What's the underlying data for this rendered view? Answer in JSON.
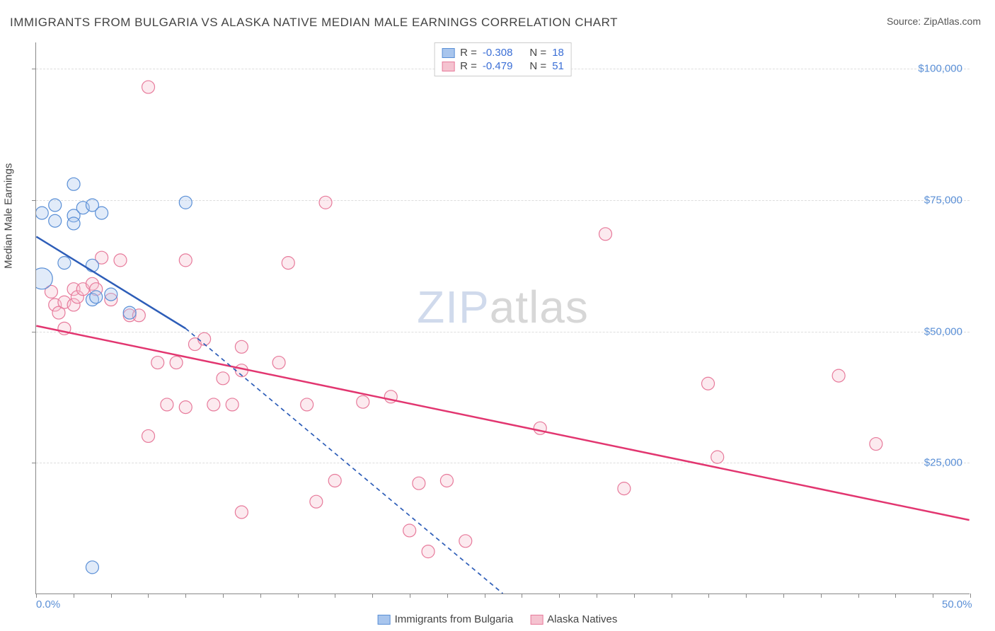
{
  "title": "IMMIGRANTS FROM BULGARIA VS ALASKA NATIVE MEDIAN MALE EARNINGS CORRELATION CHART",
  "source_label": "Source: ZipAtlas.com",
  "y_axis_label": "Median Male Earnings",
  "watermark_a": "ZIP",
  "watermark_b": "atlas",
  "chart": {
    "type": "scatter",
    "background_color": "#ffffff",
    "grid_color": "#dddddd",
    "axis_color": "#888888",
    "tick_label_color": "#5a8fd6",
    "axis_label_color": "#444444",
    "title_fontsize": 17,
    "label_fontsize": 15,
    "xlim": [
      0,
      50
    ],
    "ylim": [
      0,
      105000
    ],
    "x_ticks": [
      0,
      2,
      4,
      6,
      8,
      10,
      12,
      14,
      16,
      18,
      20,
      22,
      24,
      26,
      28,
      30,
      32,
      34,
      36,
      38,
      40,
      42,
      44,
      46,
      48,
      50
    ],
    "x_tick_labels": {
      "0": "0.0%",
      "50": "50.0%"
    },
    "y_gridlines": [
      25000,
      50000,
      75000,
      100000
    ],
    "y_tick_labels": {
      "25000": "$25,000",
      "50000": "$50,000",
      "75000": "$75,000",
      "100000": "$100,000"
    },
    "marker_radius": 9,
    "marker_radius_large": 15,
    "marker_opacity": 0.35,
    "marker_stroke_width": 1.2,
    "trend_line_width": 2.5,
    "trend_dash": "6,5"
  },
  "series": {
    "blue": {
      "label": "Immigrants from Bulgaria",
      "fill": "#a8c5ed",
      "stroke": "#5a8fd6",
      "line_color": "#2d5db8",
      "R": "-0.308",
      "N": "18",
      "points": [
        {
          "x": 0.3,
          "y": 72500
        },
        {
          "x": 0.3,
          "y": 60000,
          "large": true
        },
        {
          "x": 1.0,
          "y": 74000
        },
        {
          "x": 1.0,
          "y": 71000
        },
        {
          "x": 1.5,
          "y": 63000
        },
        {
          "x": 2.0,
          "y": 72000
        },
        {
          "x": 2.0,
          "y": 78000
        },
        {
          "x": 2.0,
          "y": 70500
        },
        {
          "x": 2.5,
          "y": 73500
        },
        {
          "x": 3.0,
          "y": 74000
        },
        {
          "x": 3.0,
          "y": 62500
        },
        {
          "x": 3.0,
          "y": 56000
        },
        {
          "x": 3.2,
          "y": 56500
        },
        {
          "x": 3.5,
          "y": 72500
        },
        {
          "x": 4.0,
          "y": 57000
        },
        {
          "x": 5.0,
          "y": 53500
        },
        {
          "x": 8.0,
          "y": 74500
        },
        {
          "x": 3.0,
          "y": 5000
        }
      ],
      "trend_solid": {
        "x1": 0,
        "y1": 68000,
        "x2": 8,
        "y2": 50500
      },
      "trend_dashed": {
        "x1": 8,
        "y1": 50500,
        "x2": 25,
        "y2": 0
      }
    },
    "pink": {
      "label": "Alaska Natives",
      "fill": "#f5c3d0",
      "stroke": "#e77a9b",
      "line_color": "#e23670",
      "R": "-0.479",
      "N": "51",
      "points": [
        {
          "x": 0.8,
          "y": 57500
        },
        {
          "x": 1.0,
          "y": 55000
        },
        {
          "x": 1.2,
          "y": 53500
        },
        {
          "x": 1.5,
          "y": 55500
        },
        {
          "x": 1.5,
          "y": 50500
        },
        {
          "x": 2.0,
          "y": 58000
        },
        {
          "x": 2.0,
          "y": 55000
        },
        {
          "x": 2.2,
          "y": 56500
        },
        {
          "x": 2.5,
          "y": 58000
        },
        {
          "x": 3.0,
          "y": 59000
        },
        {
          "x": 3.2,
          "y": 58000
        },
        {
          "x": 3.5,
          "y": 64000
        },
        {
          "x": 4.0,
          "y": 56000
        },
        {
          "x": 4.5,
          "y": 63500
        },
        {
          "x": 5.0,
          "y": 53000
        },
        {
          "x": 5.5,
          "y": 53000
        },
        {
          "x": 6.0,
          "y": 96500
        },
        {
          "x": 6.0,
          "y": 30000
        },
        {
          "x": 6.5,
          "y": 44000
        },
        {
          "x": 7.0,
          "y": 36000
        },
        {
          "x": 7.5,
          "y": 44000
        },
        {
          "x": 8.0,
          "y": 63500
        },
        {
          "x": 8.0,
          "y": 35500
        },
        {
          "x": 8.5,
          "y": 47500
        },
        {
          "x": 9.0,
          "y": 48500
        },
        {
          "x": 9.5,
          "y": 36000
        },
        {
          "x": 10.0,
          "y": 41000
        },
        {
          "x": 10.5,
          "y": 36000
        },
        {
          "x": 11.0,
          "y": 47000
        },
        {
          "x": 11.0,
          "y": 42500
        },
        {
          "x": 11.0,
          "y": 15500
        },
        {
          "x": 13.0,
          "y": 44000
        },
        {
          "x": 13.5,
          "y": 63000
        },
        {
          "x": 14.5,
          "y": 36000
        },
        {
          "x": 15.0,
          "y": 17500
        },
        {
          "x": 15.5,
          "y": 74500
        },
        {
          "x": 16.0,
          "y": 21500
        },
        {
          "x": 17.5,
          "y": 36500
        },
        {
          "x": 19.0,
          "y": 37500
        },
        {
          "x": 20.0,
          "y": 12000
        },
        {
          "x": 20.5,
          "y": 21000
        },
        {
          "x": 21.0,
          "y": 8000
        },
        {
          "x": 22.0,
          "y": 21500
        },
        {
          "x": 23.0,
          "y": 10000
        },
        {
          "x": 27.0,
          "y": 31500
        },
        {
          "x": 30.5,
          "y": 68500
        },
        {
          "x": 31.5,
          "y": 20000
        },
        {
          "x": 36.5,
          "y": 26000
        },
        {
          "x": 43.0,
          "y": 41500
        },
        {
          "x": 45.0,
          "y": 28500
        },
        {
          "x": 36.0,
          "y": 40000
        }
      ],
      "trend_solid": {
        "x1": 0,
        "y1": 51000,
        "x2": 50,
        "y2": 14000
      }
    }
  },
  "legend_top": {
    "rows": [
      {
        "swatch": "blue",
        "r_label": "R =",
        "r_val": "-0.308",
        "n_label": "N =",
        "n_val": "18"
      },
      {
        "swatch": "pink",
        "r_label": "R =",
        "r_val": "-0.479",
        "n_label": "N =",
        "n_val": "51"
      }
    ]
  },
  "legend_bottom": [
    {
      "swatch": "blue",
      "label": "Immigrants from Bulgaria"
    },
    {
      "swatch": "pink",
      "label": "Alaska Natives"
    }
  ]
}
